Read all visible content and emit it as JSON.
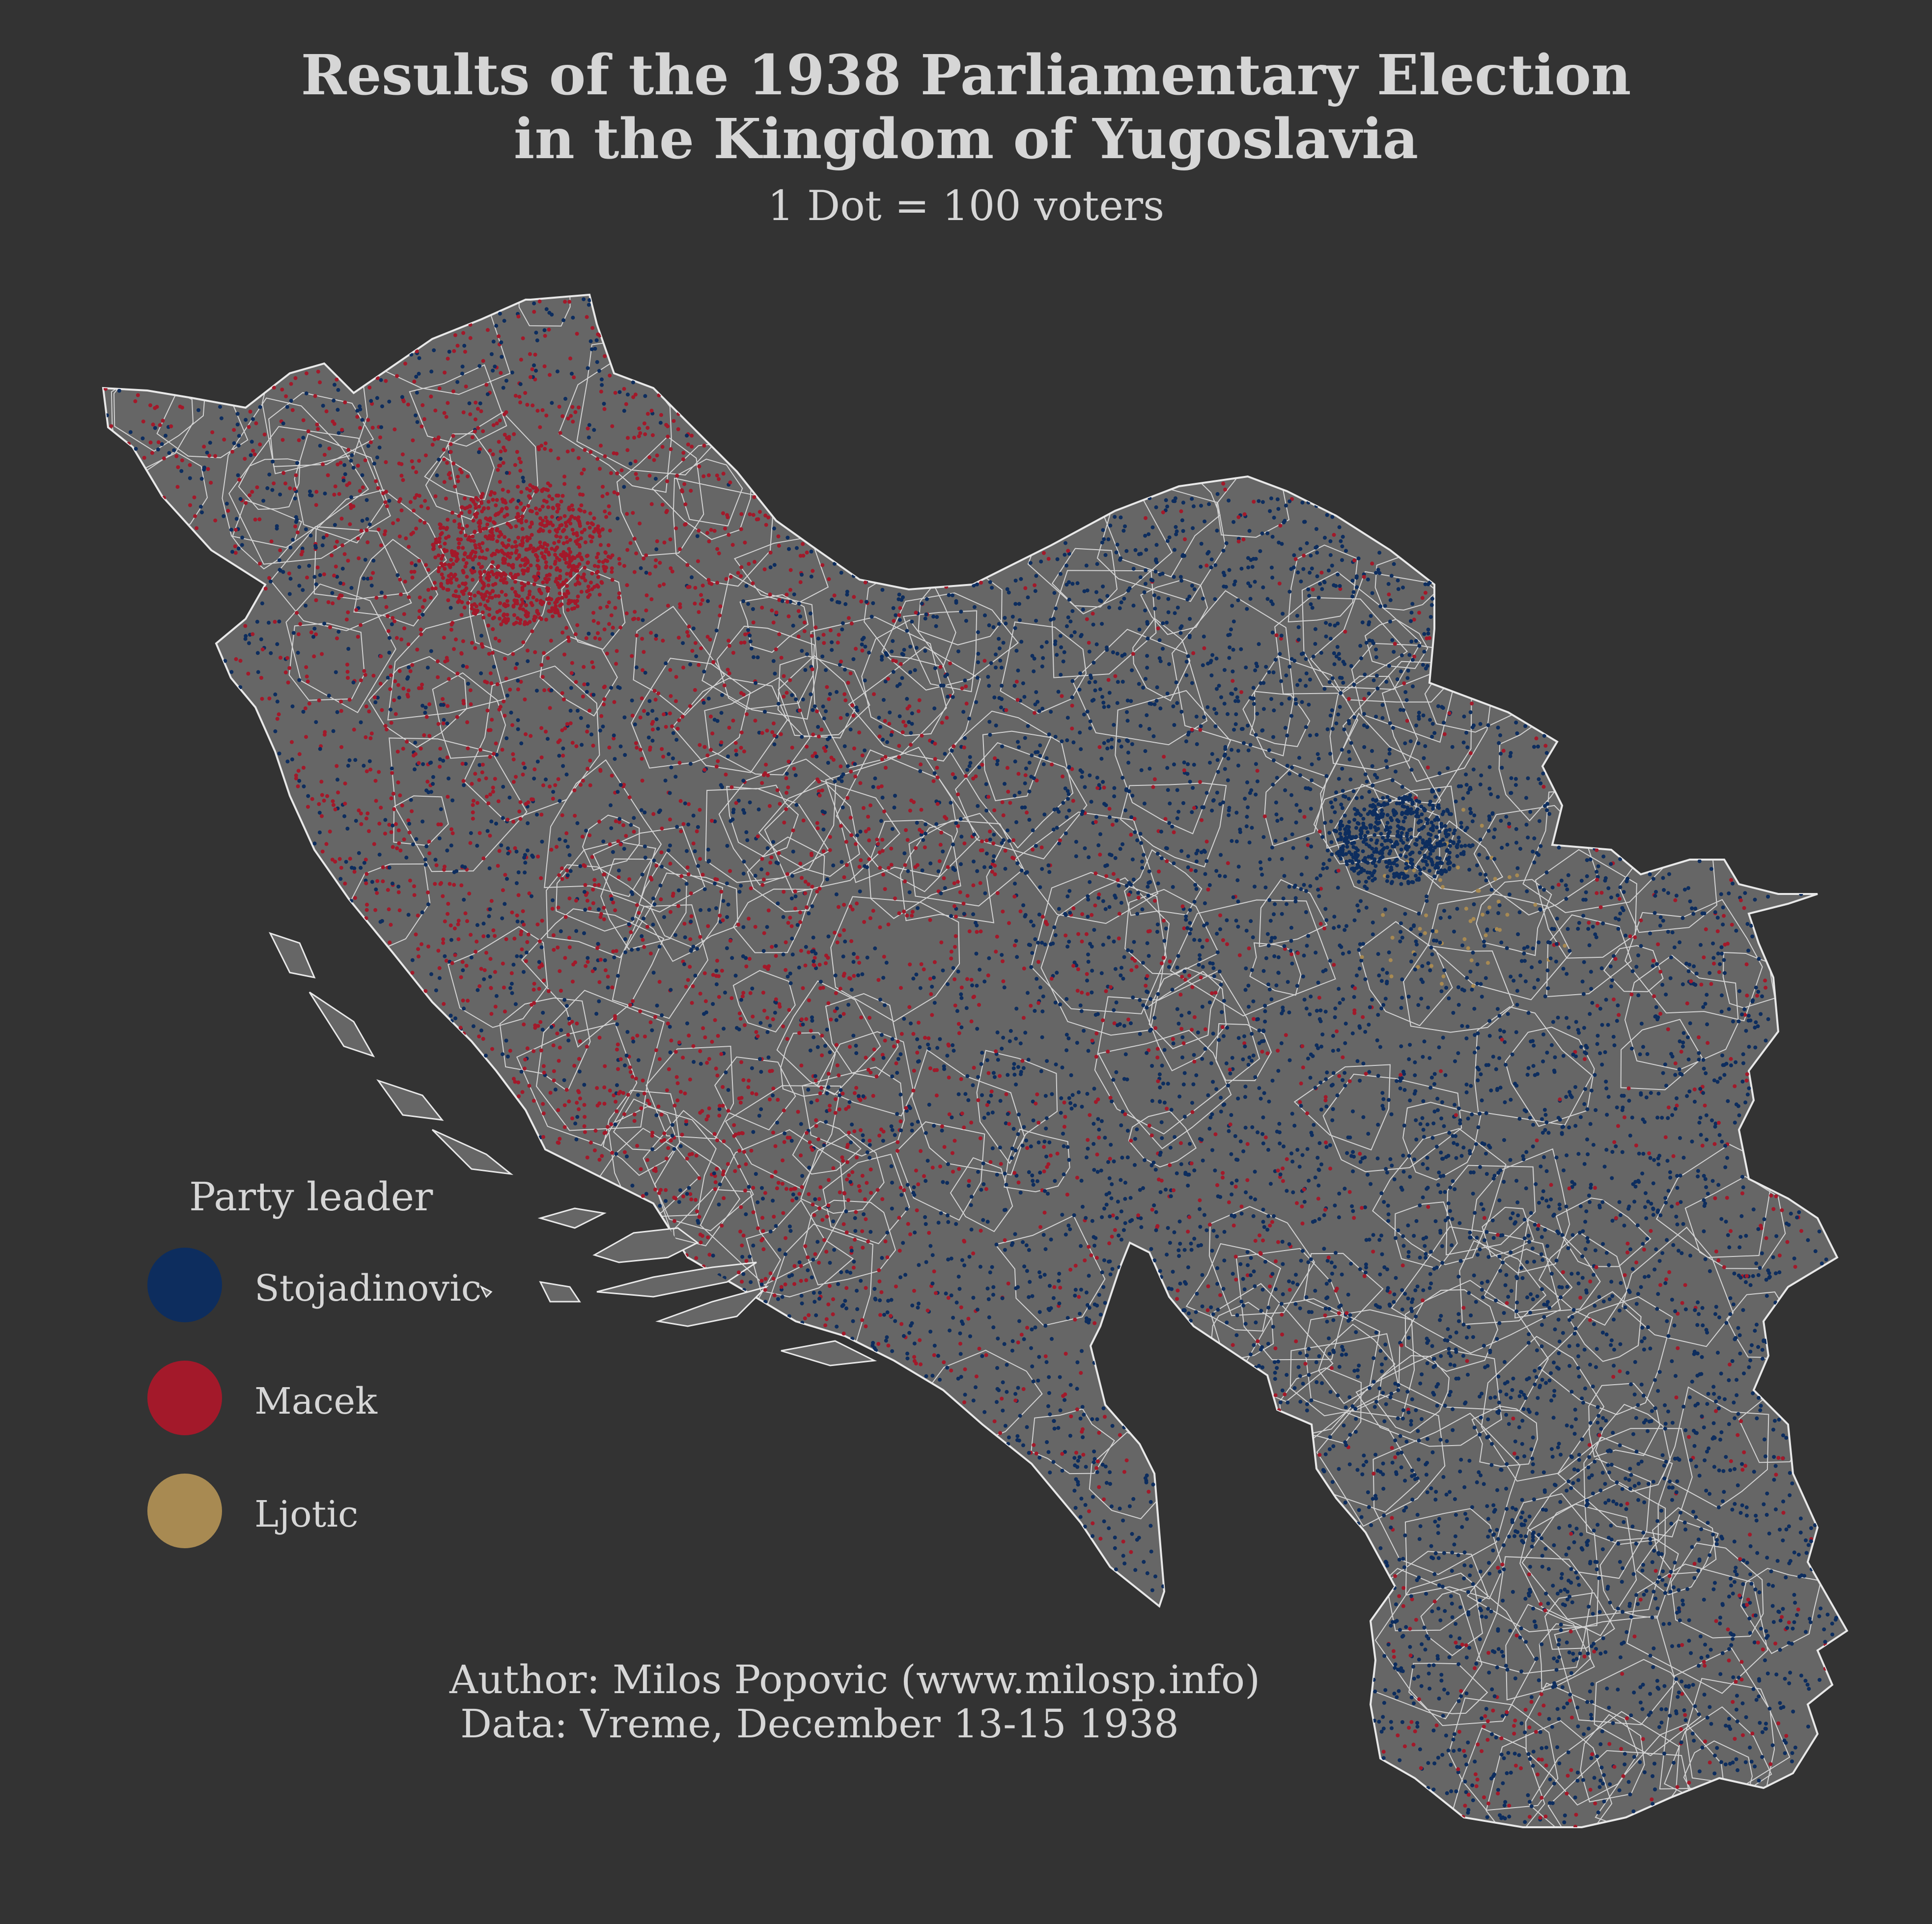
{
  "title": {
    "line1": "Results of the 1938 Parliamentary Election",
    "line2": "in the Kingdom of Yugoslavia"
  },
  "subtitle": "1 Dot = 100 voters",
  "legend": {
    "title": "Party leader",
    "items": [
      {
        "label": "Stojadinovic",
        "color": "#0d2d5e"
      },
      {
        "label": "Macek",
        "color": "#a3192a"
      },
      {
        "label": "Ljotic",
        "color": "#a88a52"
      }
    ]
  },
  "credits": {
    "author": "Author: Milos Popovic (www.milosp.info)",
    "data": "Data: Vreme, December 13-15 1938"
  },
  "colors": {
    "background": "#333333",
    "land": "#666666",
    "borders": "#e8e8e8"
  }
}
